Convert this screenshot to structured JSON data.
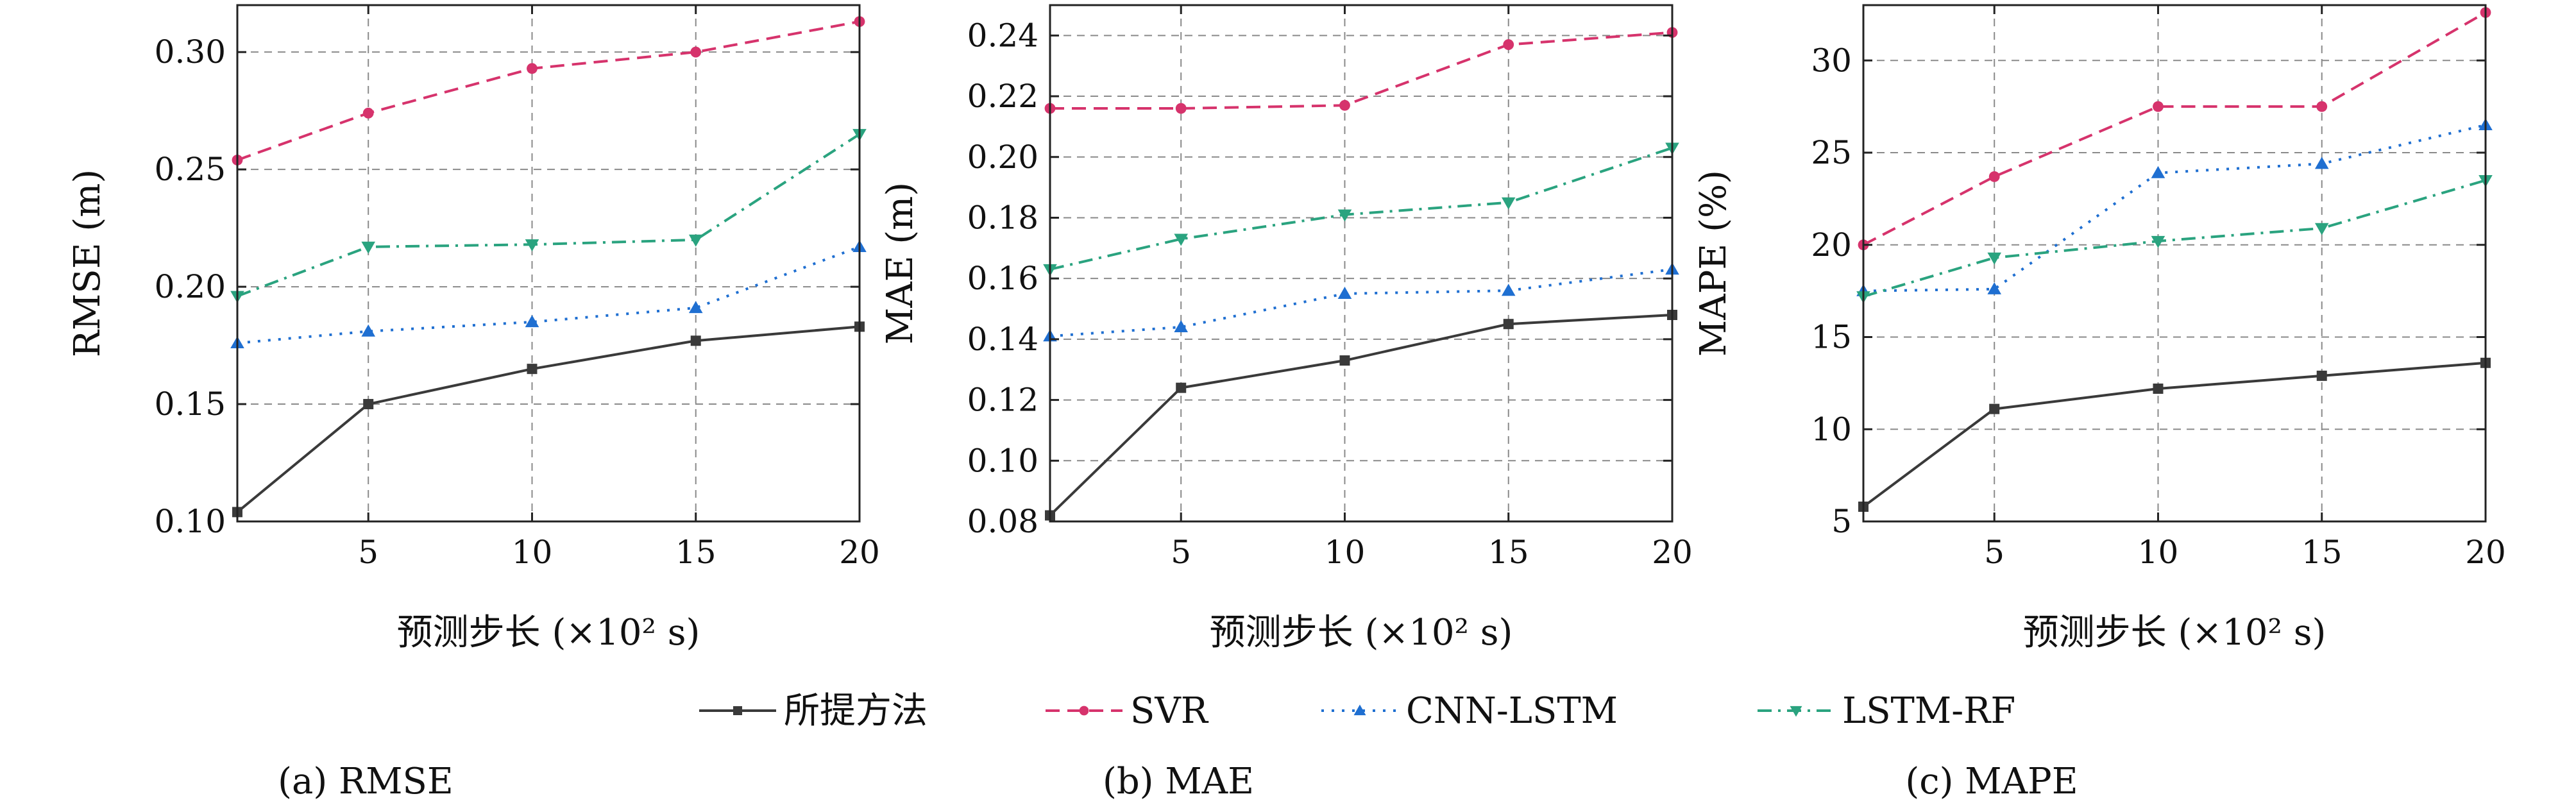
{
  "figure": {
    "legend": [
      {
        "label": "所提方法",
        "color": "#3a3a3a",
        "dash": "solid",
        "marker": "square"
      },
      {
        "label": "SVR",
        "color": "#d6336c",
        "dash": "dashed",
        "marker": "circle"
      },
      {
        "label": "CNN-LSTM",
        "color": "#1f6fd1",
        "dash": "dotted",
        "marker": "triangle-up"
      },
      {
        "label": "LSTM-RF",
        "color": "#2aa37f",
        "dash": "dashdot",
        "marker": "triangle-down"
      }
    ]
  },
  "chart_data": [
    {
      "type": "line",
      "caption": "(a) RMSE",
      "xlabel": "预测步长 (×10² s)",
      "ylabel": "RMSE (m)",
      "xlim": [
        1,
        20
      ],
      "ylim": [
        0.1,
        0.32
      ],
      "xticks": [
        5,
        10,
        15,
        20
      ],
      "yticks": [
        0.1,
        0.15,
        0.2,
        0.25,
        0.3
      ],
      "ytick_labels": [
        "0.10",
        "0.15",
        "0.20",
        "0.25",
        "0.30"
      ],
      "grid": true,
      "x": [
        1,
        5,
        10,
        15,
        20
      ],
      "series": [
        {
          "name": "所提方法",
          "values": [
            0.104,
            0.15,
            0.165,
            0.177,
            0.183
          ]
        },
        {
          "name": "SVR",
          "values": [
            0.254,
            0.274,
            0.293,
            0.3,
            0.313
          ]
        },
        {
          "name": "CNN-LSTM",
          "values": [
            0.176,
            0.181,
            0.185,
            0.191,
            0.217
          ]
        },
        {
          "name": "LSTM-RF",
          "values": [
            0.196,
            0.217,
            0.218,
            0.22,
            0.265
          ]
        }
      ]
    },
    {
      "type": "line",
      "caption": "(b) MAE",
      "xlabel": "预测步长 (×10² s)",
      "ylabel": "MAE (m)",
      "xlim": [
        1,
        20
      ],
      "ylim": [
        0.08,
        0.25
      ],
      "xticks": [
        5,
        10,
        15,
        20
      ],
      "yticks": [
        0.08,
        0.1,
        0.12,
        0.14,
        0.16,
        0.18,
        0.2,
        0.22,
        0.24
      ],
      "ytick_labels": [
        "0.08",
        "0.10",
        "0.12",
        "0.14",
        "0.16",
        "0.18",
        "0.20",
        "0.22",
        "0.24"
      ],
      "grid": true,
      "x": [
        1,
        5,
        10,
        15,
        20
      ],
      "series": [
        {
          "name": "所提方法",
          "values": [
            0.082,
            0.124,
            0.133,
            0.145,
            0.148
          ]
        },
        {
          "name": "SVR",
          "values": [
            0.216,
            0.216,
            0.217,
            0.237,
            0.241
          ]
        },
        {
          "name": "CNN-LSTM",
          "values": [
            0.141,
            0.144,
            0.155,
            0.156,
            0.163
          ]
        },
        {
          "name": "LSTM-RF",
          "values": [
            0.163,
            0.173,
            0.181,
            0.185,
            0.203
          ]
        }
      ]
    },
    {
      "type": "line",
      "caption": "(c) MAPE",
      "xlabel": "预测步长 (×10² s)",
      "ylabel": "MAPE (%)",
      "xlim": [
        1,
        20
      ],
      "ylim": [
        5,
        33
      ],
      "xticks": [
        5,
        10,
        15,
        20
      ],
      "yticks": [
        5,
        10,
        15,
        20,
        25,
        30
      ],
      "ytick_labels": [
        "5",
        "10",
        "15",
        "20",
        "25",
        "30"
      ],
      "grid": true,
      "x": [
        1,
        5,
        10,
        15,
        20
      ],
      "series": [
        {
          "name": "所提方法",
          "values": [
            5.8,
            11.1,
            12.2,
            12.9,
            13.6
          ]
        },
        {
          "name": "SVR",
          "values": [
            20.0,
            23.7,
            27.5,
            27.5,
            32.6
          ]
        },
        {
          "name": "CNN-LSTM",
          "values": [
            17.5,
            17.6,
            23.9,
            24.4,
            26.5
          ]
        },
        {
          "name": "LSTM-RF",
          "values": [
            17.2,
            19.3,
            20.2,
            20.9,
            23.5
          ]
        }
      ]
    }
  ]
}
